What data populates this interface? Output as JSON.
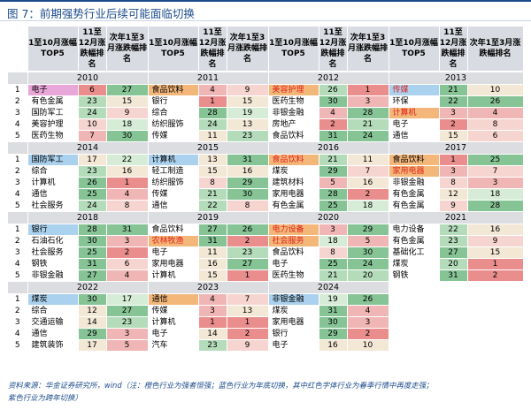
{
  "title": "图 7：前期强势行业后续可能面临切换",
  "header": {
    "top5": "1至10月涨幅TOP5",
    "nov": "11至12月涨跌幅排名",
    "next": "次年1至3月涨跌幅排名"
  },
  "colors": {
    "pink_name": "#e9a6d8",
    "orange_name": "#f3b77a",
    "blue_name": "#aad1ee",
    "header_bg": "#d8dbe1",
    "year_bg": "#dcdde1",
    "red_text": "#e0201c",
    "heat_low": "#f3e7d5",
    "heat_red": "#e98d8d",
    "heat_green": "#86c496"
  },
  "blocks": [
    {
      "years": [
        "2010",
        "2011",
        "2012",
        "2013"
      ],
      "rows": [
        {
          "idx": "1",
          "cells": [
            {
              "name": "电子",
              "nc": "pink",
              "a": "6",
              "ac": "r3",
              "b": "27",
              "bc": "g3"
            },
            {
              "name": "食品饮料",
              "nc": "orange",
              "a": "4",
              "ac": "r2",
              "b": "9",
              "bc": "r1"
            },
            {
              "name": "美容护理",
              "nc": "orange",
              "nr": true,
              "a": "26",
              "ac": "g2",
              "b": "1",
              "bc": "r3"
            },
            {
              "name": "传媒",
              "nc": "blue",
              "nr": true,
              "a": "21",
              "ac": "g3",
              "b": "10",
              "bc": "n"
            }
          ]
        },
        {
          "idx": "2",
          "cells": [
            {
              "name": "有色金属",
              "a": "23",
              "ac": "g2",
              "b": "15",
              "bc": "n"
            },
            {
              "name": "银行",
              "a": "1",
              "ac": "r3",
              "b": "15",
              "bc": "n"
            },
            {
              "name": "医药生物",
              "a": "30",
              "ac": "g3",
              "b": "3",
              "bc": "r2"
            },
            {
              "name": "环保",
              "a": "22",
              "ac": "g3",
              "b": "26",
              "bc": "g3"
            }
          ]
        },
        {
          "idx": "3",
          "cells": [
            {
              "name": "国防军工",
              "a": "24",
              "ac": "g2",
              "b": "9",
              "bc": "r1"
            },
            {
              "name": "综合",
              "a": "28",
              "ac": "g3",
              "b": "19",
              "bc": "g1"
            },
            {
              "name": "非银金融",
              "a": "4",
              "ac": "r2",
              "b": "28",
              "bc": "g3"
            },
            {
              "name": "计算机",
              "nc": "orange",
              "nr": true,
              "a": "3",
              "ac": "r2",
              "b": "4",
              "bc": "r2"
            }
          ]
        },
        {
          "idx": "4",
          "cells": [
            {
              "name": "美容护理",
              "a": "10",
              "ac": "r1",
              "b": "18",
              "bc": "g1"
            },
            {
              "name": "纺织服饰",
              "a": "24",
              "ac": "g2",
              "b": "13",
              "bc": "n"
            },
            {
              "name": "房地产",
              "a": "2",
              "ac": "r3",
              "b": "21",
              "bc": "g2"
            },
            {
              "name": "电子",
              "a": "2",
              "ac": "r3",
              "b": "8",
              "bc": "r1"
            }
          ]
        },
        {
          "idx": "5",
          "cells": [
            {
              "name": "医药生物",
              "a": "7",
              "ac": "r2",
              "b": "30",
              "bc": "g3"
            },
            {
              "name": "传媒",
              "a": "11",
              "ac": "n",
              "b": "23",
              "bc": "g2"
            },
            {
              "name": "食品饮料",
              "a": "31",
              "ac": "g3",
              "b": "24",
              "bc": "g3"
            },
            {
              "name": "通信",
              "a": "15",
              "ac": "n",
              "b": "6",
              "bc": "r1"
            }
          ]
        }
      ]
    },
    {
      "years": [
        "2014",
        "2015",
        "2016",
        "2017"
      ],
      "rows": [
        {
          "idx": "1",
          "cells": [
            {
              "name": "国防军工",
              "nc": "blue",
              "a": "17",
              "ac": "n",
              "b": "22",
              "bc": "g1"
            },
            {
              "name": "计算机",
              "nc": "blue",
              "a": "13",
              "ac": "n",
              "b": "31",
              "bc": "g3"
            },
            {
              "name": "食品饮料",
              "nc": "orange",
              "nr": true,
              "a": "21",
              "ac": "g2",
              "b": "11",
              "bc": "n"
            },
            {
              "name": "食品饮料",
              "nc": "orange",
              "a": "1",
              "ac": "r3",
              "b": "25",
              "bc": "g3"
            }
          ]
        },
        {
          "idx": "2",
          "cells": [
            {
              "name": "综合",
              "a": "23",
              "ac": "g2",
              "b": "16",
              "bc": "n"
            },
            {
              "name": "轻工制造",
              "a": "15",
              "ac": "n",
              "b": "16",
              "bc": "n"
            },
            {
              "name": "煤炭",
              "a": "29",
              "ac": "g3",
              "b": "7",
              "bc": "r1"
            },
            {
              "name": "家用电器",
              "nc": "orange",
              "nr": true,
              "a": "3",
              "ac": "r2",
              "b": "7",
              "bc": "r1"
            }
          ]
        },
        {
          "idx": "3",
          "cells": [
            {
              "name": "计算机",
              "a": "26",
              "ac": "g3",
              "b": "1",
              "bc": "r3"
            },
            {
              "name": "纺织服饰",
              "a": "8",
              "ac": "r1",
              "b": "29",
              "bc": "g3"
            },
            {
              "name": "建筑材料",
              "a": "5",
              "ac": "r2",
              "b": "16",
              "bc": "n"
            },
            {
              "name": "非银金融",
              "a": "8",
              "ac": "r1",
              "b": "3",
              "bc": "r2"
            }
          ]
        },
        {
          "idx": "4",
          "cells": [
            {
              "name": "通信",
              "a": "25",
              "ac": "g3",
              "b": "4",
              "bc": "r2"
            },
            {
              "name": "传媒",
              "a": "21",
              "ac": "g2",
              "b": "30",
              "bc": "g3"
            },
            {
              "name": "家用电器",
              "a": "28",
              "ac": "g3",
              "b": "2",
              "bc": "r3"
            },
            {
              "name": "有色金属",
              "a": "12",
              "ac": "n",
              "b": "18",
              "bc": "g1"
            }
          ]
        },
        {
          "idx": "5",
          "cells": [
            {
              "name": "社会服务",
              "a": "24",
              "ac": "g2",
              "b": "8",
              "bc": "r1"
            },
            {
              "name": "通信",
              "a": "22",
              "ac": "g2",
              "b": "8",
              "bc": "r1"
            },
            {
              "name": "有色金属",
              "a": "25",
              "ac": "g3",
              "b": "18",
              "bc": "g1"
            },
            {
              "name": "有色金属",
              "a": "9",
              "ac": "r1",
              "b": "28",
              "bc": "g3"
            }
          ]
        }
      ]
    },
    {
      "years": [
        "2018",
        "2019",
        "2020",
        "2021"
      ],
      "rows": [
        {
          "idx": "1",
          "cells": [
            {
              "name": "银行",
              "nc": "blue",
              "a": "28",
              "ac": "g3",
              "b": "31",
              "bc": "g3"
            },
            {
              "name": "食品饮料",
              "a": "27",
              "ac": "g3",
              "b": "26",
              "bc": "g3"
            },
            {
              "name": "电力设备",
              "nc": "orange",
              "nr": true,
              "a": "3",
              "ac": "r2",
              "b": "29",
              "bc": "g3"
            },
            {
              "name": "电力设备",
              "a": "22",
              "ac": "g2",
              "b": "16",
              "bc": "n"
            }
          ]
        },
        {
          "idx": "2",
          "cells": [
            {
              "name": "石油石化",
              "a": "30",
              "ac": "g3",
              "b": "3",
              "bc": "r2"
            },
            {
              "name": "农林牧渔",
              "nc": "orange",
              "nr": true,
              "a": "31",
              "ac": "g3",
              "b": "2",
              "bc": "r3"
            },
            {
              "name": "社会服务",
              "nc": "orange",
              "nr": true,
              "a": "18",
              "ac": "g1",
              "b": "5",
              "bc": "r2"
            },
            {
              "name": "有色金属",
              "a": "23",
              "ac": "g2",
              "b": "9",
              "bc": "r1"
            }
          ]
        },
        {
          "idx": "3",
          "cells": [
            {
              "name": "社会服务",
              "a": "25",
              "ac": "g3",
              "b": "2",
              "bc": "r3"
            },
            {
              "name": "电子",
              "a": "11",
              "ac": "n",
              "b": "23",
              "bc": "g2"
            },
            {
              "name": "食品饮料",
              "a": "8",
              "ac": "r1",
              "b": "30",
              "bc": "g3"
            },
            {
              "name": "基础化工",
              "a": "27",
              "ac": "g3",
              "b": "15",
              "bc": "n"
            }
          ]
        },
        {
          "idx": "4",
          "cells": [
            {
              "name": "钢铁",
              "a": "31",
              "ac": "g3",
              "b": "6",
              "bc": "r1"
            },
            {
              "name": "家用电器",
              "a": "16",
              "ac": "n",
              "b": "27",
              "bc": "g3"
            },
            {
              "name": "电子",
              "a": "25",
              "ac": "g3",
              "b": "24",
              "bc": "g3"
            },
            {
              "name": "煤炭",
              "a": "20",
              "ac": "g2",
              "b": "1",
              "bc": "r3"
            }
          ]
        },
        {
          "idx": "5",
          "cells": [
            {
              "name": "非银金融",
              "a": "27",
              "ac": "g3",
              "b": "4",
              "bc": "r2"
            },
            {
              "name": "计算机",
              "a": "15",
              "ac": "n",
              "b": "1",
              "bc": "r3"
            },
            {
              "name": "医药生物",
              "a": "21",
              "ac": "g2",
              "b": "20",
              "bc": "g2"
            },
            {
              "name": "钢铁",
              "a": "31",
              "ac": "g3",
              "b": "2",
              "bc": "r3"
            }
          ]
        }
      ]
    },
    {
      "years": [
        "2022",
        "2023",
        "2024"
      ],
      "rows": [
        {
          "idx": "1",
          "cells": [
            {
              "name": "煤炭",
              "nc": "blue",
              "a": "30",
              "ac": "g3",
              "b": "17",
              "bc": "g1"
            },
            {
              "name": "通信",
              "nc": "orange",
              "a": "4",
              "ac": "r2",
              "b": "7",
              "bc": "r1"
            },
            {
              "name": "非银金融",
              "nc": "blue",
              "a": "19",
              "ac": "g1",
              "b": "26",
              "bc": "g3"
            }
          ]
        },
        {
          "idx": "2",
          "cells": [
            {
              "name": "综合",
              "a": "12",
              "ac": "n",
              "b": "27",
              "bc": "g3"
            },
            {
              "name": "传媒",
              "a": "3",
              "ac": "r2",
              "b": "13",
              "bc": "n"
            },
            {
              "name": "煤炭",
              "a": "31",
              "ac": "g3",
              "b": "4",
              "bc": "r2"
            }
          ]
        },
        {
          "idx": "3",
          "cells": [
            {
              "name": "交通运输",
              "a": "14",
              "ac": "n",
              "b": "23",
              "bc": "g2"
            },
            {
              "name": "计算机",
              "a": "1",
              "ac": "r3",
              "b": "1",
              "bc": "r3"
            },
            {
              "name": "家用电器",
              "a": "30",
              "ac": "g3",
              "b": "3",
              "bc": "r2"
            }
          ]
        },
        {
          "idx": "4",
          "cells": [
            {
              "name": "通信",
              "a": "29",
              "ac": "g3",
              "b": "3",
              "bc": "r2"
            },
            {
              "name": "电子",
              "a": "14",
              "ac": "n",
              "b": "2",
              "bc": "r3"
            },
            {
              "name": "银行",
              "a": "29",
              "ac": "g3",
              "b": "2",
              "bc": "r3"
            }
          ]
        },
        {
          "idx": "5",
          "cells": [
            {
              "name": "建筑装饰",
              "a": "17",
              "ac": "n",
              "b": "5",
              "bc": "r2"
            },
            {
              "name": "汽车",
              "a": "23",
              "ac": "g2",
              "b": "9",
              "bc": "r1"
            },
            {
              "name": "电子",
              "a": "16",
              "ac": "n",
              "b": "10",
              "bc": "n"
            }
          ]
        }
      ]
    }
  ],
  "source_line1": "资料来源：华金证券研究所，wind（注：橙色行业为强者恒强；蓝色行业为年底切换，其中红色字体行业为春季行情中再度走强；",
  "source_line2": "紫色行业为跨年切换）"
}
